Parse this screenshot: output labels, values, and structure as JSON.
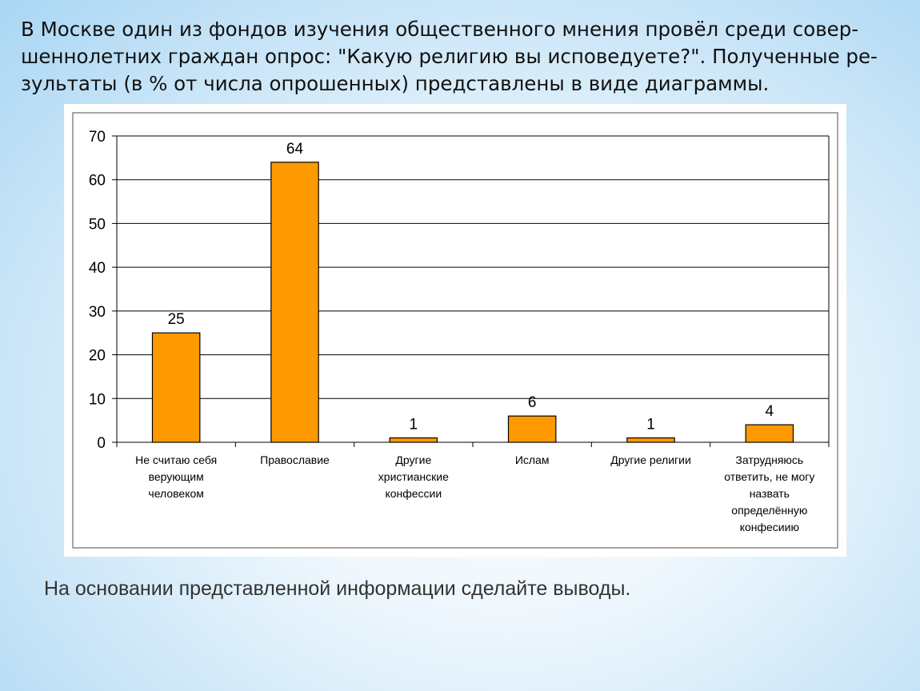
{
  "intro": {
    "line1": "В Москве один из фондов изучения общественного мнения провёл среди совер-",
    "line2": "шеннолетних граждан опрос: \"Какую религию вы исповедуете?\". Полученные ре-",
    "line3": "зультаты (в % от числа опрошенных) представлены в виде диаграммы."
  },
  "chart_data": {
    "type": "bar",
    "categories": [
      [
        "Не считаю себя",
        "верующим",
        "человеком"
      ],
      [
        "Православие"
      ],
      [
        "Другие",
        "христианские",
        "конфессии"
      ],
      [
        "Ислам"
      ],
      [
        "Другие религии"
      ],
      [
        "Затрудняюсь",
        "ответить, не могу",
        "назвать",
        "определённую",
        "конфесиию"
      ]
    ],
    "values": [
      25,
      64,
      1,
      6,
      1,
      4
    ],
    "ylim": [
      0,
      70
    ],
    "yticks": [
      0,
      10,
      20,
      30,
      40,
      50,
      60,
      70
    ],
    "grid": true,
    "bar_color": "#ff9900",
    "bar_stroke": "#000000"
  },
  "footer": {
    "text": "На основании представленной информации сделайте выводы."
  }
}
